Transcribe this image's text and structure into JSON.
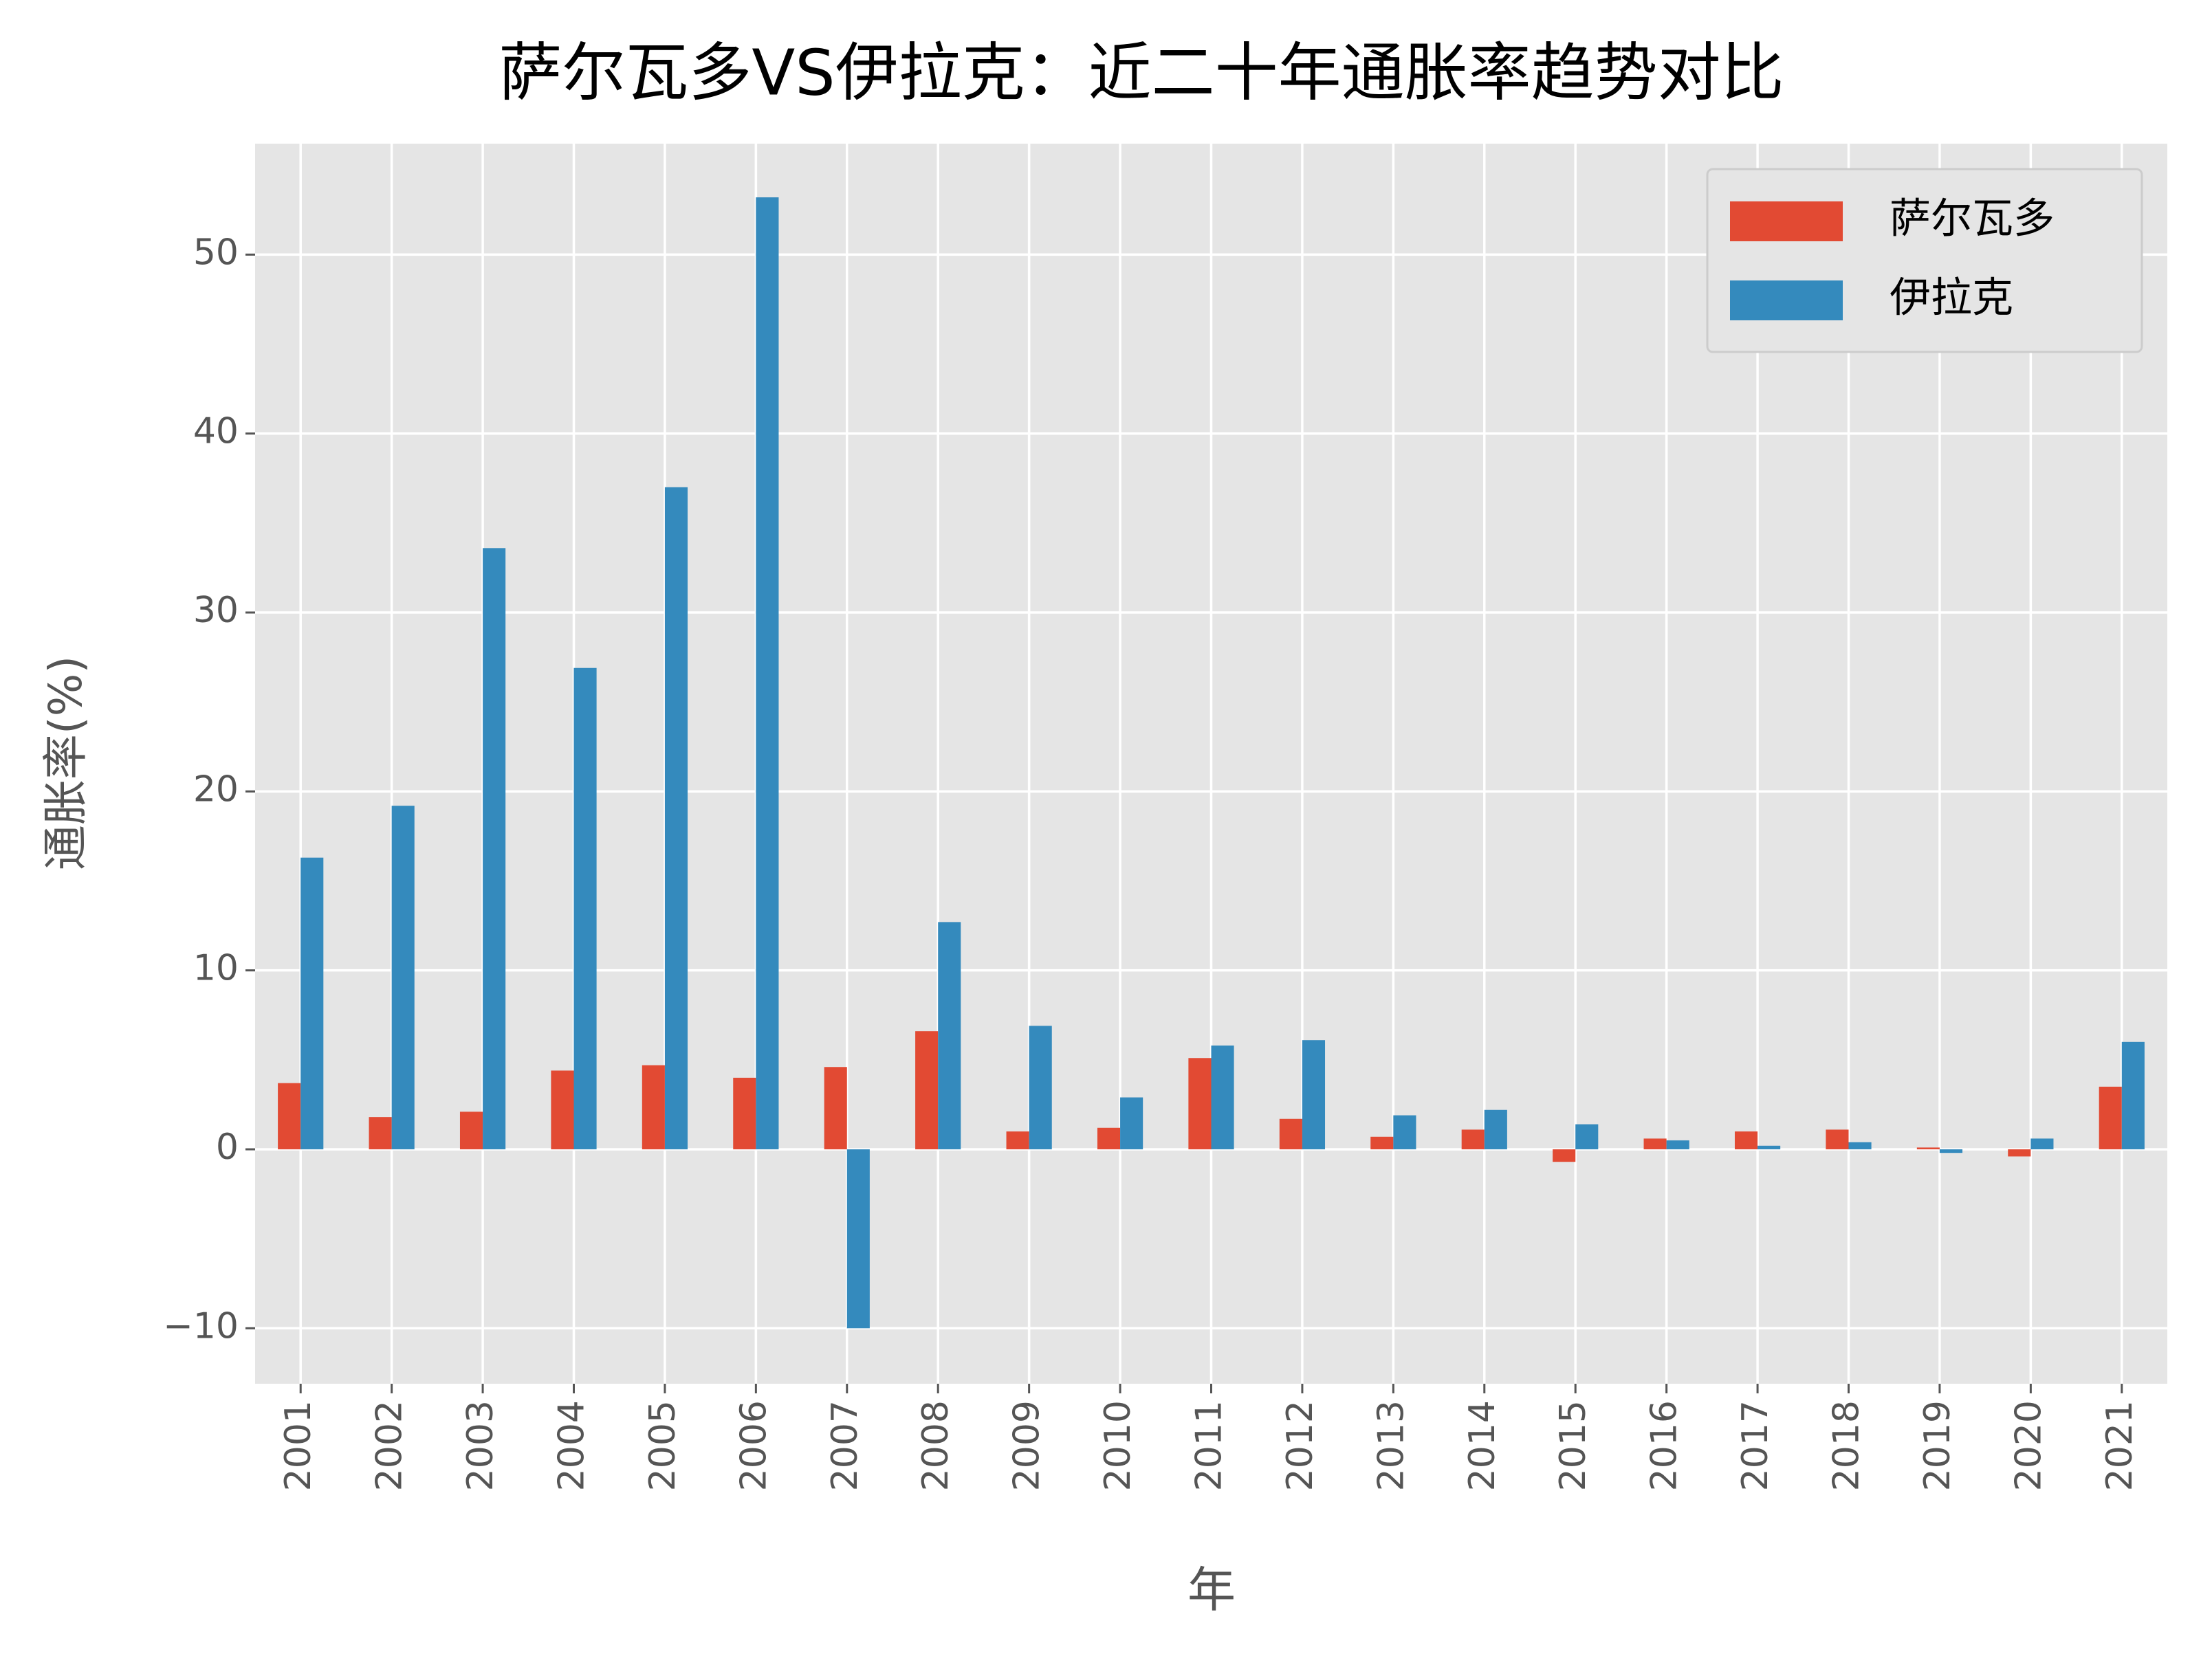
{
  "chart_data": {
    "type": "bar",
    "title": "萨尔瓦多VS伊拉克：近二十年通胀率趋势对比",
    "x_label": "年",
    "y_label": "通胀率(%)",
    "categories": [
      "2001",
      "2002",
      "2003",
      "2004",
      "2005",
      "2006",
      "2007",
      "2008",
      "2009",
      "2010",
      "2011",
      "2012",
      "2013",
      "2014",
      "2015",
      "2016",
      "2017",
      "2018",
      "2019",
      "2020",
      "2021"
    ],
    "series": [
      {
        "name": "萨尔瓦多",
        "color": "#e24a33",
        "values": [
          3.7,
          1.8,
          2.1,
          4.4,
          4.7,
          4.0,
          4.6,
          6.6,
          1.0,
          1.2,
          5.1,
          1.7,
          0.7,
          1.1,
          -0.7,
          0.6,
          1.0,
          1.1,
          0.1,
          -0.4,
          3.5
        ]
      },
      {
        "name": "伊拉克",
        "color": "#348abd",
        "values": [
          16.3,
          19.2,
          33.6,
          26.9,
          37.0,
          53.2,
          -10.0,
          12.7,
          6.9,
          2.9,
          5.8,
          6.1,
          1.9,
          2.2,
          1.4,
          0.5,
          0.2,
          0.4,
          -0.2,
          0.6,
          6.0
        ]
      }
    ],
    "ylim": [
      -13.1,
      56.2
    ],
    "yticks": [
      {
        "value": -10,
        "label": "−10"
      },
      0,
      10,
      20,
      30,
      40,
      50
    ],
    "grid": true,
    "legend": "upper right"
  }
}
